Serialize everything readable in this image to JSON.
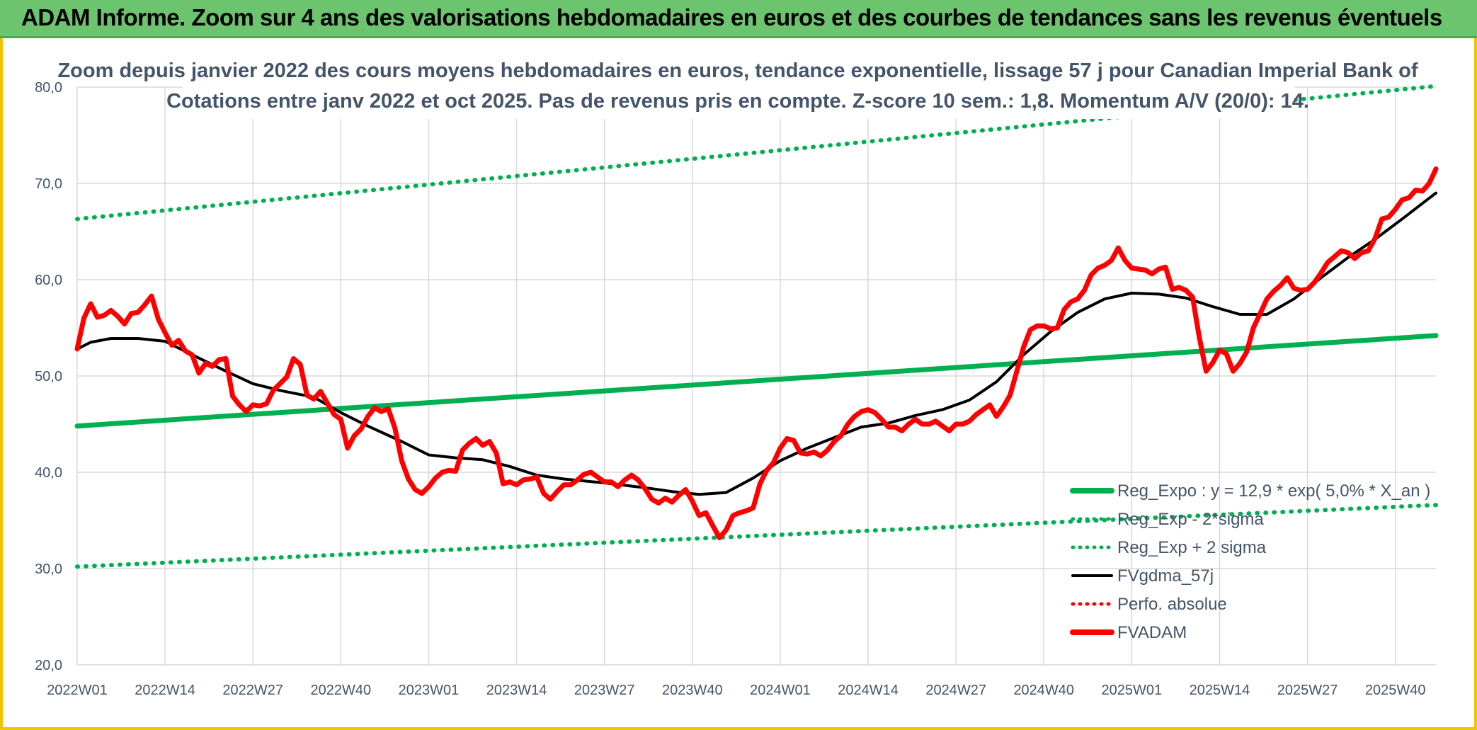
{
  "header": {
    "title": "ADAM Informe. Zoom sur 4 ans des valorisations hebdomadaires en euros et des courbes de tendances sans les revenus éventuels"
  },
  "colors": {
    "banner": "#6cc46f",
    "frame": "#f2c400",
    "trend": "#00b050",
    "fva": "#ff0000",
    "smooth": "#000000",
    "text": "#44546a",
    "grid": "#d9d9d9"
  },
  "chart_data": {
    "type": "line",
    "title": "Zoom depuis janvier 2022 des cours moyens hebdomadaires en euros, tendance exponentielle, lissage 57 j pour Canadian Imperial Bank of",
    "subtitle": "Cotations entre janv 2022 et oct 2025. Pas de revenus pris en compte. Z-score 10 sem.: 1,8. Momentum A/V (20/0): 14.",
    "xlabel": "",
    "ylabel": "",
    "ylim": [
      20,
      80
    ],
    "yticks": [
      "20,0",
      "30,0",
      "40,0",
      "50,0",
      "60,0",
      "70,0",
      "80,0"
    ],
    "x_tick_labels": [
      "2022W01",
      "2022W14",
      "2022W27",
      "2022W40",
      "2023W01",
      "2023W14",
      "2023W27",
      "2023W40",
      "2024W01",
      "2024W14",
      "2024W27",
      "2024W40",
      "2025W01",
      "2025W14",
      "2025W27",
      "2025W40"
    ],
    "x_tick_index": [
      0,
      13,
      26,
      39,
      52,
      65,
      78,
      91,
      104,
      117,
      130,
      143,
      156,
      169,
      182,
      195
    ],
    "grid": true,
    "legend_position": "bottom-right",
    "legend": [
      {
        "name": "Reg_Expo : y = 12,9 * exp( 5,0% *  X_an )",
        "style": "thick-solid",
        "color": "#00b050"
      },
      {
        "name": "Reg_Exp - 2*sigma",
        "style": "dotted",
        "color": "#00b050"
      },
      {
        "name": "Reg_Exp + 2 sigma",
        "style": "dotted",
        "color": "#00b050"
      },
      {
        "name": "FVgdma_57j",
        "style": "solid",
        "color": "#000000"
      },
      {
        "name": "Perfo. absolue",
        "style": "dotted",
        "color": "#ff0000"
      },
      {
        "name": "FVADAM",
        "style": "thick-solid",
        "color": "#ff0000"
      }
    ],
    "series": [
      {
        "name": "Reg_Expo : y = 12,9 * exp( 5,0% *  X_an )",
        "x": [
          0,
          201
        ],
        "values": [
          44.8,
          54.2
        ]
      },
      {
        "name": "Reg_Exp - 2*sigma",
        "x": [
          0,
          201
        ],
        "values": [
          30.2,
          36.6
        ]
      },
      {
        "name": "Reg_Exp + 2 sigma",
        "x": [
          0,
          201
        ],
        "values": [
          66.3,
          80.1
        ]
      },
      {
        "name": "FVgdma_57j",
        "x": [
          0,
          2,
          5,
          9,
          13,
          17,
          22,
          26,
          30,
          35,
          39,
          43,
          48,
          52,
          56,
          60,
          64,
          68,
          72,
          78,
          84,
          88,
          92,
          96,
          100,
          104,
          108,
          112,
          116,
          120,
          124,
          128,
          132,
          136,
          140,
          144,
          148,
          152,
          156,
          160,
          164,
          168,
          172,
          176,
          180,
          184,
          188,
          192,
          196,
          201
        ],
        "values": [
          52.8,
          53.5,
          53.9,
          53.9,
          53.6,
          52.2,
          50.5,
          49.2,
          48.5,
          47.8,
          46.2,
          44.8,
          43.2,
          41.8,
          41.5,
          41.3,
          40.6,
          39.7,
          39.3,
          38.9,
          38.4,
          38.0,
          37.7,
          37.9,
          39.4,
          41.2,
          42.5,
          43.6,
          44.7,
          45.1,
          45.9,
          46.5,
          47.5,
          49.4,
          52.2,
          54.6,
          56.6,
          58.0,
          58.6,
          58.5,
          58.1,
          57.2,
          56.4,
          56.4,
          58.0,
          60.2,
          62.3,
          64.2,
          66.3,
          69.0
        ]
      },
      {
        "name": "FVADAM",
        "x": [
          0,
          1,
          2,
          3,
          4,
          5,
          6,
          7,
          8,
          9,
          10,
          11,
          12,
          13,
          14,
          15,
          16,
          17,
          18,
          19,
          20,
          21,
          22,
          23,
          24,
          25,
          26,
          27,
          28,
          29,
          30,
          31,
          32,
          33,
          34,
          35,
          36,
          37,
          38,
          39,
          40,
          41,
          42,
          43,
          44,
          45,
          46,
          47,
          48,
          49,
          50,
          51,
          52,
          53,
          54,
          55,
          56,
          57,
          58,
          59,
          60,
          61,
          62,
          63,
          64,
          65,
          66,
          67,
          68,
          69,
          70,
          71,
          72,
          73,
          74,
          75,
          76,
          77,
          78,
          79,
          80,
          81,
          82,
          83,
          84,
          85,
          86,
          87,
          88,
          89,
          90,
          91,
          92,
          93,
          94,
          95,
          96,
          97,
          98,
          99,
          100,
          101,
          102,
          103,
          104,
          105,
          106,
          107,
          108,
          109,
          110,
          111,
          112,
          113,
          114,
          115,
          116,
          117,
          118,
          119,
          120,
          121,
          122,
          123,
          124,
          125,
          126,
          127,
          128,
          129,
          130,
          131,
          132,
          133,
          134,
          135,
          136,
          137,
          138,
          139,
          140,
          141,
          142,
          143,
          144,
          145,
          146,
          147,
          148,
          149,
          150,
          151,
          152,
          153,
          154,
          155,
          156,
          157,
          158,
          159,
          160,
          161,
          162,
          163,
          164,
          165,
          166,
          167,
          168,
          169,
          170,
          171,
          172,
          173,
          174,
          175,
          176,
          177,
          178,
          179,
          180,
          181,
          182,
          183,
          184,
          185,
          186,
          187,
          188,
          189,
          190,
          191,
          192,
          193,
          194,
          195,
          196,
          197,
          198,
          199,
          200,
          201
        ],
        "values": [
          52.8,
          56.0,
          57.5,
          56.1,
          56.3,
          56.8,
          56.2,
          55.4,
          56.5,
          56.6,
          57.4,
          58.3,
          55.9,
          54.5,
          53.2,
          53.7,
          52.6,
          52.2,
          50.3,
          51.3,
          51.0,
          51.7,
          51.8,
          47.9,
          47.0,
          46.3,
          47.0,
          46.9,
          47.1,
          48.5,
          49.2,
          49.9,
          51.8,
          51.2,
          48.0,
          47.6,
          48.4,
          47.2,
          46.0,
          45.5,
          42.5,
          43.8,
          44.5,
          45.8,
          46.7,
          46.3,
          46.6,
          44.6,
          41.2,
          39.3,
          38.2,
          37.8,
          38.5,
          39.4,
          40.0,
          40.2,
          40.1,
          42.3,
          43.0,
          43.5,
          42.8,
          43.2,
          42.0,
          38.8,
          39.0,
          38.7,
          39.2,
          39.3,
          39.5,
          37.8,
          37.2,
          38.0,
          38.7,
          38.7,
          39.2,
          39.8,
          40.0,
          39.5,
          39.0,
          39.0,
          38.5,
          39.2,
          39.7,
          39.2,
          38.3,
          37.2,
          36.8,
          37.3,
          36.9,
          37.6,
          38.2,
          37.0,
          35.5,
          35.8,
          34.5,
          33.2,
          34.0,
          35.5,
          35.8,
          36.0,
          36.3,
          38.8,
          40.2,
          41.0,
          42.5,
          43.5,
          43.3,
          42.0,
          41.9,
          42.1,
          41.7,
          42.3,
          43.2,
          43.8,
          45.0,
          45.8,
          46.3,
          46.5,
          46.2,
          45.5,
          44.7,
          44.7,
          44.3,
          45.0,
          45.5,
          45.0,
          45.0,
          45.3,
          44.8,
          44.3,
          45.0,
          45.0,
          45.3,
          46.0,
          46.5,
          47.0,
          45.8,
          46.8,
          48.0,
          50.5,
          53.0,
          54.8,
          55.2,
          55.2,
          54.9,
          55.0,
          56.9,
          57.7,
          58.0,
          58.9,
          60.5,
          61.2,
          61.5,
          62.0,
          63.3,
          62.0,
          61.2,
          61.1,
          61.0,
          60.6,
          61.1,
          61.3,
          59.0,
          59.2,
          58.9,
          58.2,
          54.0,
          50.5,
          51.4,
          52.7,
          52.3,
          50.5,
          51.3,
          52.5,
          55.0,
          56.5,
          58.0,
          58.8,
          59.4,
          60.2,
          59.1,
          58.9,
          59.0,
          59.7,
          60.7,
          61.8,
          62.4,
          63.0,
          62.8,
          62.2,
          62.8,
          63.0,
          64.3,
          66.3,
          66.5,
          67.3,
          68.3,
          68.5,
          69.3,
          69.2,
          70.0,
          71.5
        ]
      }
    ]
  }
}
